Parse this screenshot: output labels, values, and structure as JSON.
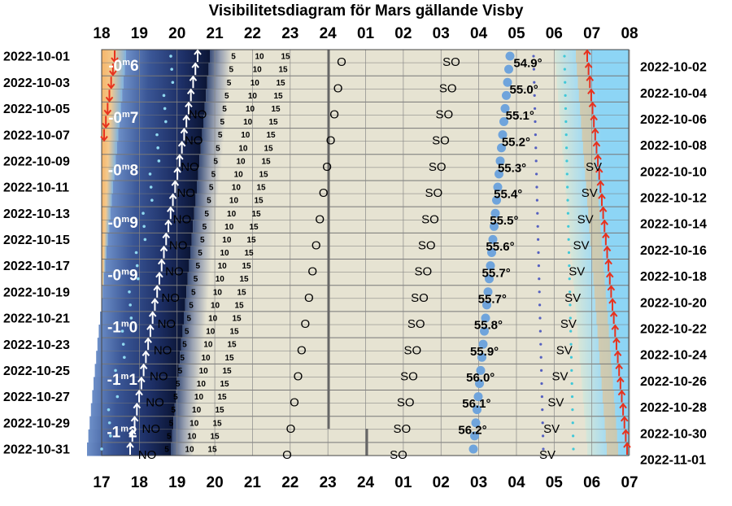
{
  "chart_data": {
    "type": "visibility-diagram",
    "title": "Visibilitetsdiagram för Mars gällande Visby",
    "top_hours": [
      "18",
      "19",
      "20",
      "21",
      "22",
      "23",
      "24",
      "01",
      "02",
      "03",
      "04",
      "05",
      "06",
      "07",
      "08"
    ],
    "bottom_hours": [
      "17",
      "18",
      "19",
      "20",
      "21",
      "22",
      "23",
      "24",
      "01",
      "02",
      "03",
      "04",
      "05",
      "06",
      "07"
    ],
    "left_dates": [
      "2022-10-01",
      "2022-10-03",
      "2022-10-05",
      "2022-10-07",
      "2022-10-09",
      "2022-10-11",
      "2022-10-13",
      "2022-10-15",
      "2022-10-17",
      "2022-10-19",
      "2022-10-21",
      "2022-10-23",
      "2022-10-25",
      "2022-10-27",
      "2022-10-29",
      "2022-10-31"
    ],
    "right_dates": [
      "2022-10-02",
      "2022-10-04",
      "2022-10-06",
      "2022-10-08",
      "2022-10-10",
      "2022-10-12",
      "2022-10-14",
      "2022-10-16",
      "2022-10-18",
      "2022-10-20",
      "2022-10-22",
      "2022-10-24",
      "2022-10-26",
      "2022-10-28",
      "2022-10-30",
      "2022-11-01"
    ],
    "magnitudes": [
      "-0m6",
      "-0m7",
      "-0m8",
      "-0m9",
      "-0m9",
      "-1m0",
      "-1m1",
      "-1m2"
    ],
    "transit_altitudes": [
      "54.9°",
      "55.0°",
      "55.1°",
      "55.2°",
      "55.3°",
      "55.4°",
      "55.5°",
      "55.6°",
      "55.7°",
      "55.7°",
      "55.8°",
      "55.9°",
      "56.0°",
      "56.1°",
      "56.2°"
    ],
    "direction_labels": {
      "rise": "NO",
      "east": "O",
      "southeast": "SO",
      "southwest": "SV"
    },
    "altitude_ticks": [
      "5",
      "10",
      "15"
    ],
    "colors": {
      "sky_day": "#8dd5f5",
      "dusk": "#f5b870",
      "night": "#1c2f6a",
      "deep_night": "#0a1233",
      "visible": "#e6e3d2",
      "marker": "#6fa4dc",
      "rise_arrow": "#2a5fd0",
      "set_arrow": "#e8321e"
    }
  }
}
